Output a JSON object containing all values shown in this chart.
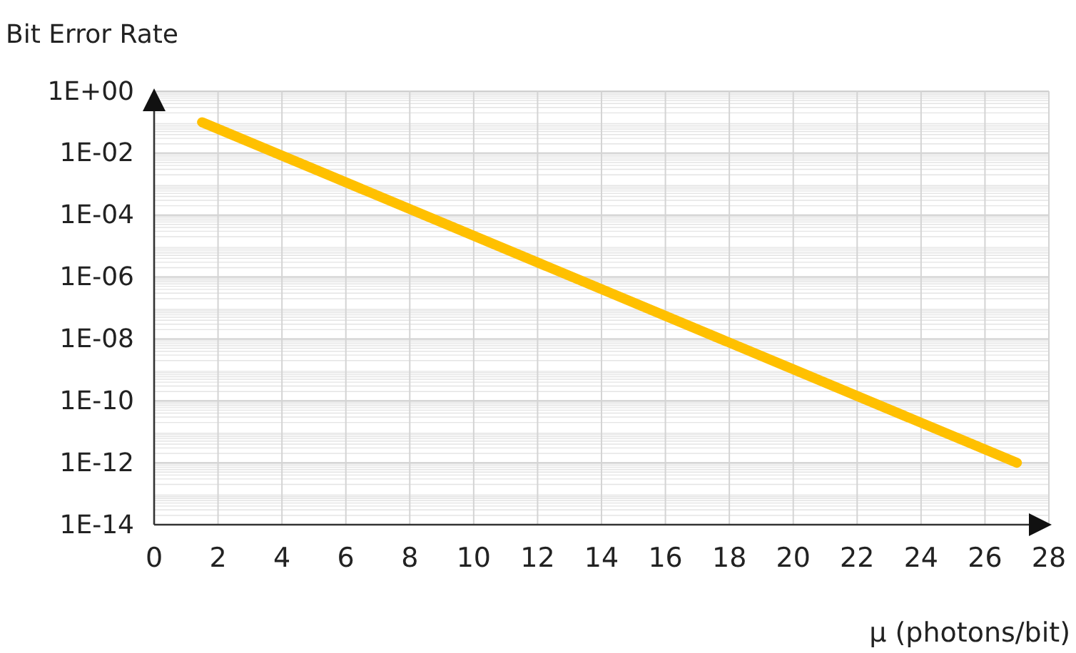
{
  "chart_data": {
    "type": "line",
    "ylabel": "Bit Error Rate",
    "xlabel": "μ (photons/bit)",
    "x": [
      1.5,
      27
    ],
    "series": [
      {
        "color": "#ffc000",
        "values": [
          0.1,
          1e-12
        ]
      }
    ],
    "xlim": [
      0,
      28
    ],
    "xticks": [
      0,
      2,
      4,
      6,
      8,
      10,
      12,
      14,
      16,
      18,
      20,
      22,
      24,
      26,
      28
    ],
    "ylim": [
      1e-14,
      1
    ],
    "yticks": [
      {
        "value": 1e-14,
        "label": "1E-14"
      },
      {
        "value": 1e-12,
        "label": "1E-12"
      },
      {
        "value": 1e-10,
        "label": "1E-10"
      },
      {
        "value": 1e-08,
        "label": "1E-08"
      },
      {
        "value": 1e-06,
        "label": "1E-06"
      },
      {
        "value": 0.0001,
        "label": "1E-04"
      },
      {
        "value": 0.01,
        "label": "1E-02"
      },
      {
        "value": 1,
        "label": "1E+00"
      }
    ],
    "log": "y",
    "grid": true,
    "marker": "none",
    "line_style": "solid"
  }
}
